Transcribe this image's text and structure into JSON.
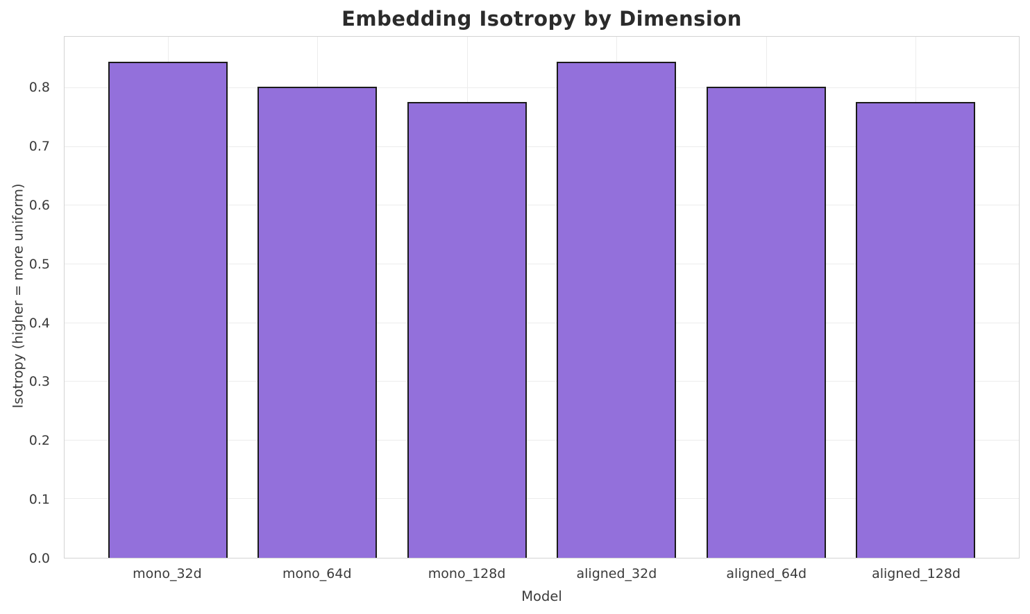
{
  "chart_data": {
    "type": "bar",
    "title": "Embedding Isotropy by Dimension",
    "xlabel": "Model",
    "ylabel": "Isotropy (higher = more uniform)",
    "categories": [
      "mono_32d",
      "mono_64d",
      "mono_128d",
      "aligned_32d",
      "aligned_64d",
      "aligned_128d"
    ],
    "values": [
      0.845,
      0.802,
      0.777,
      0.845,
      0.802,
      0.777
    ],
    "yticks": [
      0.0,
      0.1,
      0.2,
      0.3,
      0.4,
      0.5,
      0.6,
      0.7,
      0.8
    ],
    "ylim": [
      0,
      0.8875
    ],
    "grid": true,
    "legend": "none",
    "colors": {
      "bar_fill": "#9370DB",
      "bar_edge": "#1a1a1a",
      "grid": "#ececec",
      "spine": "#d3d3d3",
      "text": "#3a3a3a",
      "title": "#2b2b2b",
      "background": "#ffffff"
    }
  }
}
